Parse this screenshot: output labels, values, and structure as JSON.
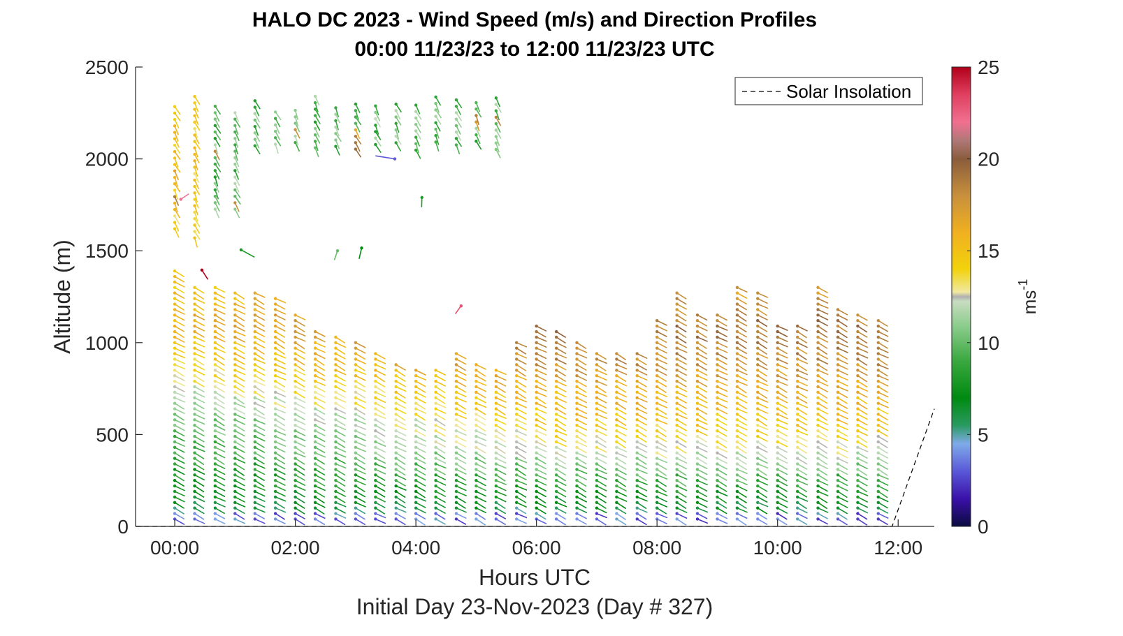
{
  "chart_data": {
    "type": "scatter",
    "title": "HALO DC 2023 - Wind Speed (m/s) and Direction Profiles",
    "subtitle": "00:00 11/23/23 to 12:00 11/23/23  UTC",
    "xlabel": "Hours UTC",
    "x_caption": "Initial Day 23-Nov-2023 (Day # 327)",
    "ylabel": "Altitude (m)",
    "xlim": [
      -0.65,
      12.6
    ],
    "ylim": [
      0,
      2500
    ],
    "x_ticks": [
      0,
      2,
      4,
      6,
      8,
      10,
      12
    ],
    "x_tick_labels": [
      "00:00",
      "02:00",
      "04:00",
      "06:00",
      "08:00",
      "10:00",
      "12:00"
    ],
    "y_ticks": [
      0,
      500,
      1000,
      1500,
      2000,
      2500
    ],
    "y_tick_labels": [
      "0",
      "500",
      "1000",
      "1500",
      "2000",
      "2500"
    ],
    "colorbar": {
      "label": "ms",
      "label_exponent": "-1",
      "lim": [
        0,
        25
      ],
      "ticks": [
        0,
        5,
        10,
        15,
        20,
        25
      ],
      "tick_labels": [
        "0",
        "5",
        "10",
        "15",
        "20",
        "25"
      ]
    },
    "legend": {
      "entries": [
        "Solar Insolation"
      ],
      "placement": "top-right",
      "line_style": "dashed"
    },
    "solar_insolation": {
      "x": [
        -0.65,
        11.9,
        12.6
      ],
      "y": [
        0,
        0,
        640
      ]
    },
    "profile_times_h": [
      0,
      0.33,
      0.67,
      1.0,
      1.33,
      1.67,
      2.0,
      2.33,
      2.67,
      3.0,
      3.33,
      3.67,
      4.0,
      4.33,
      4.67,
      5.0,
      5.33,
      5.67,
      6.0,
      6.33,
      6.67,
      7.0,
      7.33,
      7.67,
      8.0,
      8.33,
      8.67,
      9.0,
      9.33,
      9.67,
      10.0,
      10.33,
      10.67,
      11.0,
      11.33,
      11.67
    ],
    "lower_layer_top_m": [
      1400,
      1320,
      1310,
      1270,
      1280,
      1260,
      1170,
      1080,
      1050,
      1020,
      950,
      900,
      870,
      860,
      950,
      900,
      860,
      1020,
      1090,
      1080,
      1000,
      950,
      960,
      950,
      1130,
      1290,
      1170,
      1160,
      1300,
      1290,
      1100,
      1090,
      1310,
      1200,
      1170,
      1120
    ],
    "upper_layer_range_m": [
      1540,
      2360
    ],
    "upper_layer_profile_count": 17,
    "speed_profile_ms": {
      "altitude_m": [
        0,
        60,
        150,
        300,
        450,
        600,
        750,
        900,
        1100,
        1300
      ],
      "early_speed": [
        4,
        5,
        7,
        8,
        9,
        10,
        12,
        14,
        16,
        15
      ],
      "late_speed": [
        3,
        5,
        7,
        10,
        13,
        15,
        16,
        18,
        19,
        17
      ]
    },
    "wind_direction_note": "barbs point toward the upper left, mostly from the north-west"
  }
}
